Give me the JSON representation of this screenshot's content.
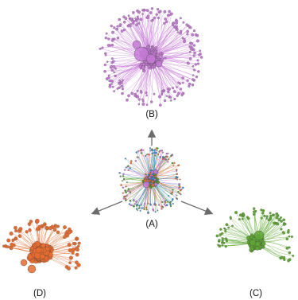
{
  "figure": {
    "panels": [
      {
        "id": "B",
        "label": "(B)",
        "colors": [
          "#c67ad6"
        ]
      },
      {
        "id": "A",
        "label": "(A)",
        "colors": [
          "#c67ad6",
          "#e56b2e",
          "#4e9a2c",
          "#2f8fcf"
        ]
      },
      {
        "id": "D",
        "label": "(D)",
        "colors": [
          "#e56b2e"
        ]
      },
      {
        "id": "C",
        "label": "(C)",
        "colors": [
          "#5fa834"
        ]
      }
    ],
    "arrow_color": "#6b6b6b",
    "arrows": [
      {
        "from": "A",
        "to": "B"
      },
      {
        "from": "A",
        "to": "D"
      },
      {
        "from": "A",
        "to": "C"
      }
    ]
  }
}
